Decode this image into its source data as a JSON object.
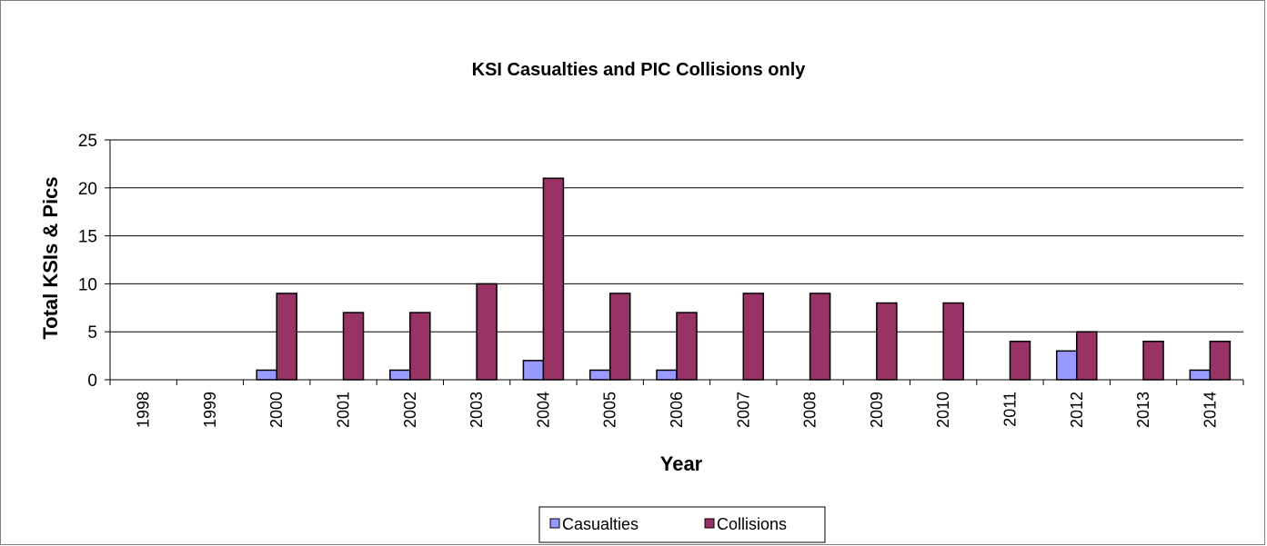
{
  "chart_data": {
    "type": "bar",
    "title": "KSI Casualties and PIC Collisions only",
    "xlabel": "Year",
    "ylabel": "Total KSIs  & Pics",
    "ylim": [
      0,
      25
    ],
    "yticks": [
      0,
      5,
      10,
      15,
      20,
      25
    ],
    "grid": true,
    "legend_position": "bottom",
    "categories": [
      "1998",
      "1999",
      "2000",
      "2001",
      "2002",
      "2003",
      "2004",
      "2005",
      "2006",
      "2007",
      "2008",
      "2009",
      "2010",
      "2011",
      "2012",
      "2013",
      "2014"
    ],
    "series": [
      {
        "name": "Casualties",
        "color": "#9999ff",
        "values": [
          0,
          0,
          1,
          0,
          1,
          0,
          2,
          1,
          1,
          0,
          0,
          0,
          0,
          0,
          3,
          0,
          1
        ]
      },
      {
        "name": "Collisions",
        "color": "#993366",
        "values": [
          0,
          0,
          9,
          7,
          7,
          10,
          21,
          9,
          7,
          9,
          9,
          8,
          8,
          4,
          5,
          4,
          4
        ]
      }
    ]
  }
}
